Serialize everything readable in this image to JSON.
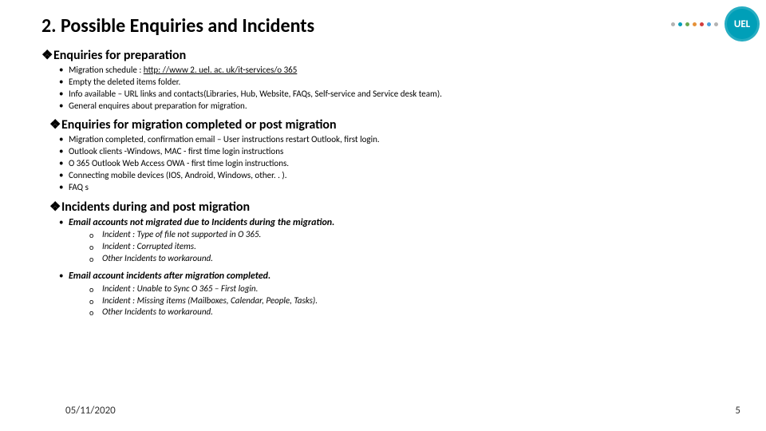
{
  "title": "2. Possible Enquiries and Incidents",
  "sections": {
    "prep": {
      "heading": "Enquiries for preparation",
      "items": [
        {
          "prefix": "Migration schedule : ",
          "link": "http: //www 2. uel. ac. uk/it-services/o 365"
        },
        {
          "text": "Empty the deleted items folder."
        },
        {
          "text": "Info available –  URL links and contacts(Libraries, Hub, Website, FAQs, Self-service and Service desk team)."
        },
        {
          "text": "General enquires about preparation for migration."
        }
      ]
    },
    "post": {
      "heading": "Enquiries for migration completed or post migration",
      "items": [
        {
          "text": "Migration completed, confirmation email – User instructions restart Outlook, first login."
        },
        {
          "text": "Outlook clients -Windows, MAC - first time login instructions"
        },
        {
          "text": "O 365 Outlook Web Access OWA - first time login instructions."
        },
        {
          "text": "Connecting mobile devices (IOS, Android, Windows, other. . )."
        },
        {
          "text": "FAQ s"
        }
      ]
    },
    "incidents": {
      "heading": "Incidents during and post migration",
      "sub1": {
        "label": "Email accounts not migrated due to Incidents during the migration.",
        "items": [
          "Incident : Type of file not supported in O 365.",
          "Incident : Corrupted items.",
          "Other Incidents to workaround."
        ]
      },
      "sub2": {
        "label": "Email account incidents after migration completed.",
        "items": [
          "Incident : Unable to Sync O 365 – First login.",
          "Incident : Missing items (Mailboxes, Calendar, People, Tasks).",
          "Other Incidents to workaround."
        ]
      }
    }
  },
  "footer": {
    "date": "05/11/2020",
    "page": "5"
  },
  "brand": {
    "logo_text": "UEL",
    "logo_bg": "#009fb8",
    "dot_colors": [
      "#b3b3b3",
      "#009fb8",
      "#6aa84f",
      "#e69138",
      "#d23c3c",
      "#4aa3df",
      "#b3b3b3"
    ]
  },
  "glyphs": {
    "diamond": "❖"
  }
}
